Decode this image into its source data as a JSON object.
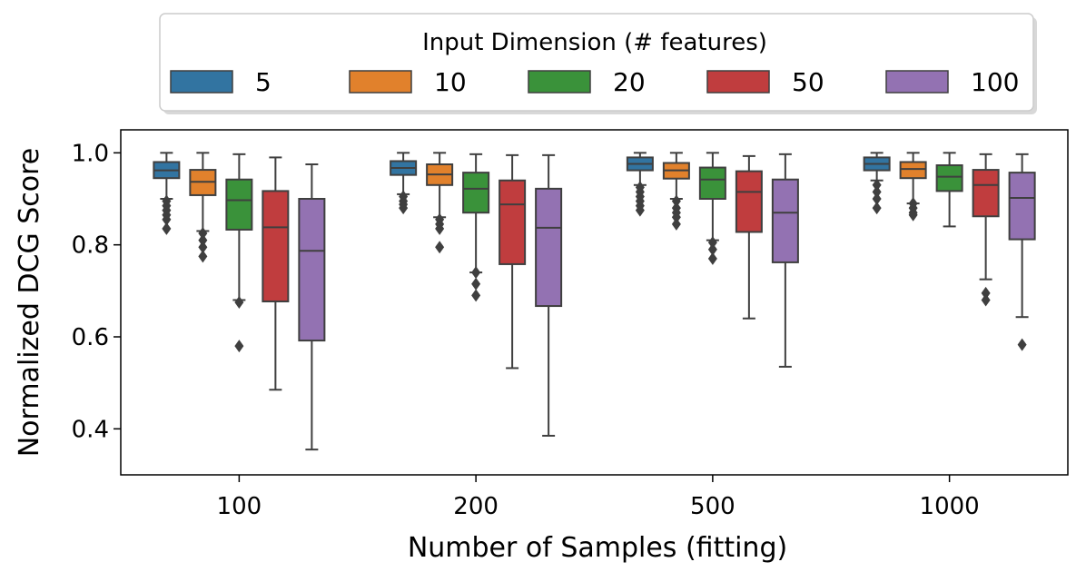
{
  "chart_data": {
    "type": "boxplot",
    "xlabel": "Number of Samples (fitting)",
    "ylabel": "Normalized DCG Score",
    "categories": [
      "100",
      "200",
      "500",
      "1000"
    ],
    "ylim": [
      0.3,
      1.05
    ],
    "yticks": [
      "0.4",
      "0.6",
      "0.8",
      "1.0"
    ],
    "grid": false,
    "legend": {
      "title": "Input Dimension (# features)",
      "placement": "top-center",
      "entries": [
        "5",
        "10",
        "20",
        "50",
        "100"
      ]
    },
    "series": [
      {
        "name": "5",
        "color": "#3274a1",
        "boxes": [
          {
            "category": "100",
            "whislo": 0.9,
            "q1": 0.945,
            "med": 0.962,
            "q3": 0.98,
            "whishi": 1.0,
            "fliers": [
              0.895,
              0.885,
              0.875,
              0.865,
              0.855,
              0.835
            ]
          },
          {
            "category": "200",
            "whislo": 0.91,
            "q1": 0.952,
            "med": 0.967,
            "q3": 0.982,
            "whishi": 1.0,
            "fliers": [
              0.905,
              0.895,
              0.888,
              0.88
            ]
          },
          {
            "category": "500",
            "whislo": 0.93,
            "q1": 0.962,
            "med": 0.976,
            "q3": 0.99,
            "whishi": 1.0,
            "fliers": [
              0.925,
              0.915,
              0.905,
              0.895,
              0.885,
              0.875
            ]
          },
          {
            "category": "1000",
            "whislo": 0.94,
            "q1": 0.962,
            "med": 0.976,
            "q3": 0.99,
            "whishi": 1.0,
            "fliers": [
              0.93,
              0.915,
              0.9,
              0.88
            ]
          }
        ]
      },
      {
        "name": "10",
        "color": "#e1812c",
        "boxes": [
          {
            "category": "100",
            "whislo": 0.83,
            "q1": 0.908,
            "med": 0.937,
            "q3": 0.963,
            "whishi": 1.0,
            "fliers": [
              0.825,
              0.81,
              0.795,
              0.775
            ]
          },
          {
            "category": "200",
            "whislo": 0.86,
            "q1": 0.93,
            "med": 0.953,
            "q3": 0.975,
            "whishi": 1.0,
            "fliers": [
              0.855,
              0.845,
              0.835,
              0.795
            ]
          },
          {
            "category": "500",
            "whislo": 0.9,
            "q1": 0.944,
            "med": 0.962,
            "q3": 0.978,
            "whishi": 1.0,
            "fliers": [
              0.895,
              0.88,
              0.87,
              0.86,
              0.845
            ]
          },
          {
            "category": "1000",
            "whislo": 0.89,
            "q1": 0.945,
            "med": 0.965,
            "q3": 0.98,
            "whishi": 1.0,
            "fliers": [
              0.89,
              0.88,
              0.87,
              0.865
            ]
          }
        ]
      },
      {
        "name": "20",
        "color": "#3a923a",
        "boxes": [
          {
            "category": "100",
            "whislo": 0.68,
            "q1": 0.833,
            "med": 0.897,
            "q3": 0.942,
            "whishi": 0.997,
            "fliers": [
              0.675,
              0.58
            ]
          },
          {
            "category": "200",
            "whislo": 0.74,
            "q1": 0.87,
            "med": 0.922,
            "q3": 0.957,
            "whishi": 0.997,
            "fliers": [
              0.74,
              0.715,
              0.69
            ]
          },
          {
            "category": "500",
            "whislo": 0.81,
            "q1": 0.9,
            "med": 0.942,
            "q3": 0.968,
            "whishi": 1.0,
            "fliers": [
              0.805,
              0.79,
              0.77
            ]
          },
          {
            "category": "1000",
            "whislo": 0.84,
            "q1": 0.917,
            "med": 0.948,
            "q3": 0.973,
            "whishi": 1.0,
            "fliers": []
          }
        ]
      },
      {
        "name": "50",
        "color": "#c03d3e",
        "boxes": [
          {
            "category": "100",
            "whislo": 0.485,
            "q1": 0.677,
            "med": 0.838,
            "q3": 0.917,
            "whishi": 0.99,
            "fliers": []
          },
          {
            "category": "200",
            "whislo": 0.532,
            "q1": 0.758,
            "med": 0.888,
            "q3": 0.94,
            "whishi": 0.995,
            "fliers": []
          },
          {
            "category": "500",
            "whislo": 0.64,
            "q1": 0.828,
            "med": 0.915,
            "q3": 0.96,
            "whishi": 0.993,
            "fliers": []
          },
          {
            "category": "1000",
            "whislo": 0.725,
            "q1": 0.862,
            "med": 0.93,
            "q3": 0.963,
            "whishi": 0.997,
            "fliers": [
              0.695,
              0.68
            ]
          }
        ]
      },
      {
        "name": "100",
        "color": "#9372b2",
        "boxes": [
          {
            "category": "100",
            "whislo": 0.355,
            "q1": 0.592,
            "med": 0.787,
            "q3": 0.9,
            "whishi": 0.975,
            "fliers": []
          },
          {
            "category": "200",
            "whislo": 0.385,
            "q1": 0.667,
            "med": 0.837,
            "q3": 0.922,
            "whishi": 0.995,
            "fliers": []
          },
          {
            "category": "500",
            "whislo": 0.535,
            "q1": 0.762,
            "med": 0.87,
            "q3": 0.942,
            "whishi": 0.997,
            "fliers": []
          },
          {
            "category": "1000",
            "whislo": 0.643,
            "q1": 0.812,
            "med": 0.902,
            "q3": 0.957,
            "whishi": 0.997,
            "fliers": [
              0.583
            ]
          }
        ]
      }
    ]
  }
}
